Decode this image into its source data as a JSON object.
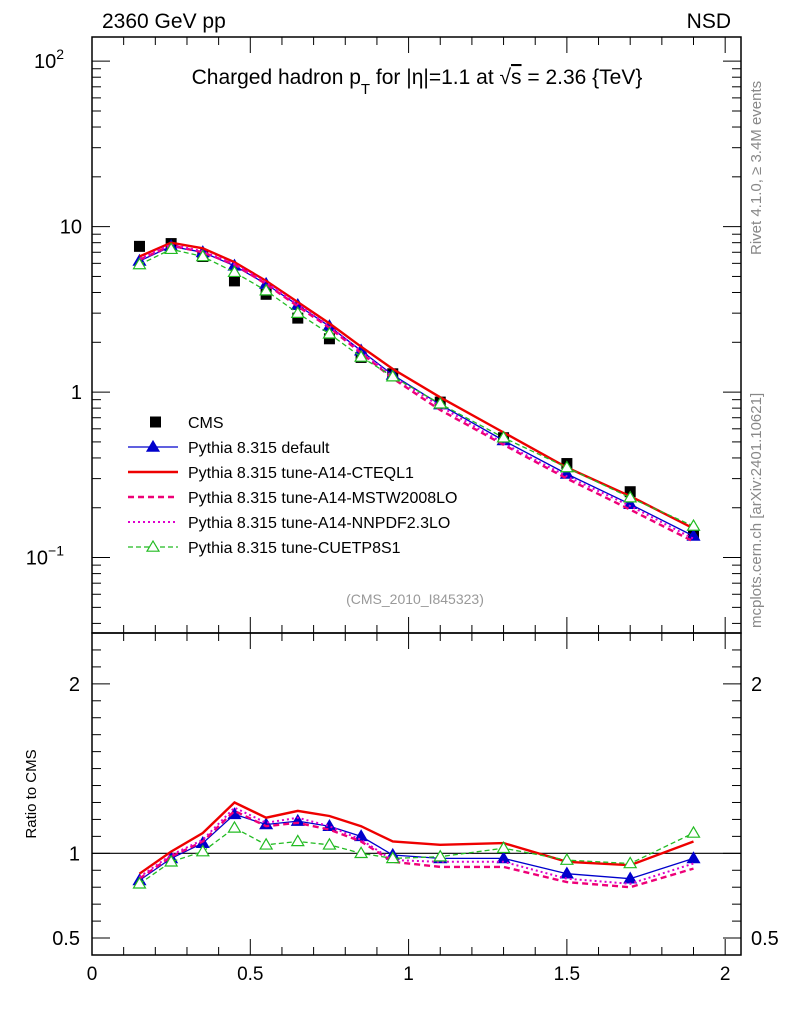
{
  "header": {
    "left": "2360 GeV pp",
    "right": "NSD"
  },
  "side": {
    "rivet": "Rivet 4.1.0, ≥ 3.4M events",
    "mcplots": "mcplots.cern.ch [arXiv:2401.10621]"
  },
  "colors": {
    "cms": "#000000",
    "default": "#0000cc",
    "cteql1": "#ee0000",
    "mstw": "#ee0077",
    "nnpdf": "#dd00cc",
    "cuetp": "#22bb22"
  },
  "chart_data": {
    "type": "line",
    "title_parts": [
      "Charged hadron p",
      "T",
      " for |η|=1.1 at √",
      "s",
      " = 2.36 {TeV}"
    ],
    "analysis_tag": "(CMS_2010_I845323)",
    "x": [
      0.15,
      0.25,
      0.35,
      0.45,
      0.55,
      0.65,
      0.75,
      0.85,
      0.95,
      1.1,
      1.3,
      1.5,
      1.7,
      1.9
    ],
    "xlim": [
      0,
      2.05
    ],
    "xticks": [
      "0",
      "0.5",
      "1",
      "1.5",
      "2"
    ],
    "xtick_values": [
      0,
      0.5,
      1,
      1.5,
      2
    ],
    "ylim": [
      0.035,
      140
    ],
    "yscale": "log",
    "ytick_labels": [
      {
        "value": 100,
        "base": "10",
        "exp": "2"
      },
      {
        "value": 10,
        "base": "10",
        "exp": ""
      },
      {
        "value": 1,
        "base": "1",
        "exp": ""
      },
      {
        "value": 0.1,
        "base": "10",
        "exp": "−1"
      }
    ],
    "ratio": {
      "ylabel": "Ratio to CMS",
      "ylim": [
        0.4,
        2.3
      ],
      "ticks": [
        {
          "value": 0.5,
          "label": "0.5"
        },
        {
          "value": 1,
          "label": "1"
        },
        {
          "value": 2,
          "label": "2"
        }
      ],
      "right_ticks": [
        {
          "value": 0.5,
          "label": "0.5"
        },
        {
          "value": 2,
          "label": "2"
        }
      ]
    },
    "legend_position": "bottom-left",
    "series": [
      {
        "key": "cms",
        "name": "CMS",
        "style": "square",
        "values": [
          7.6,
          7.9,
          6.6,
          4.7,
          3.9,
          2.8,
          2.1,
          1.62,
          1.29,
          0.87,
          0.53,
          0.37,
          0.25,
          0.14
        ]
      },
      {
        "key": "default",
        "name": "Pythia 8.315 default",
        "style": "solid-triangle",
        "values": [
          6.2,
          7.6,
          7.0,
          5.8,
          4.5,
          3.35,
          2.5,
          1.78,
          1.27,
          0.84,
          0.51,
          0.32,
          0.21,
          0.135
        ],
        "ratio": [
          0.84,
          0.97,
          1.06,
          1.23,
          1.17,
          1.19,
          1.16,
          1.1,
          0.99,
          0.97,
          0.97,
          0.88,
          0.85,
          0.97
        ]
      },
      {
        "key": "cteql1",
        "name": "Pythia 8.315 tune-A14-CTEQL1",
        "style": "solid",
        "values": [
          6.6,
          8.0,
          7.4,
          6.1,
          4.7,
          3.5,
          2.6,
          1.88,
          1.38,
          0.93,
          0.57,
          0.35,
          0.235,
          0.15
        ],
        "ratio": [
          0.88,
          1.01,
          1.12,
          1.3,
          1.21,
          1.25,
          1.22,
          1.16,
          1.07,
          1.05,
          1.06,
          0.95,
          0.93,
          1.07
        ]
      },
      {
        "key": "mstw",
        "name": "Pythia 8.315 tune-A14-MSTW2008LO",
        "style": "dashed",
        "values": [
          6.3,
          7.7,
          7.0,
          5.9,
          4.5,
          3.3,
          2.45,
          1.72,
          1.21,
          0.78,
          0.48,
          0.3,
          0.195,
          0.125
        ],
        "ratio": [
          0.85,
          0.98,
          1.07,
          1.25,
          1.16,
          1.18,
          1.14,
          1.07,
          0.95,
          0.92,
          0.92,
          0.83,
          0.8,
          0.91
        ]
      },
      {
        "key": "nnpdf",
        "name": "Pythia 8.315 tune-A14-NNPDF2.3LO",
        "style": "dotted",
        "values": [
          6.4,
          7.8,
          7.1,
          5.95,
          4.6,
          3.4,
          2.5,
          1.76,
          1.24,
          0.82,
          0.49,
          0.31,
          0.205,
          0.13
        ],
        "ratio": [
          0.86,
          0.99,
          1.08,
          1.27,
          1.18,
          1.21,
          1.16,
          1.08,
          0.96,
          0.95,
          0.95,
          0.85,
          0.82,
          0.94
        ]
      },
      {
        "key": "cuetp",
        "name": "Pythia 8.315 tune-CUETP8S1",
        "style": "dashed-open-triangle",
        "values": [
          5.9,
          7.3,
          6.6,
          5.3,
          4.1,
          3.0,
          2.25,
          1.63,
          1.24,
          0.85,
          0.53,
          0.35,
          0.23,
          0.155
        ],
        "ratio": [
          0.82,
          0.95,
          1.01,
          1.15,
          1.05,
          1.07,
          1.05,
          1.0,
          0.97,
          0.98,
          1.03,
          0.96,
          0.94,
          1.12
        ]
      }
    ]
  }
}
